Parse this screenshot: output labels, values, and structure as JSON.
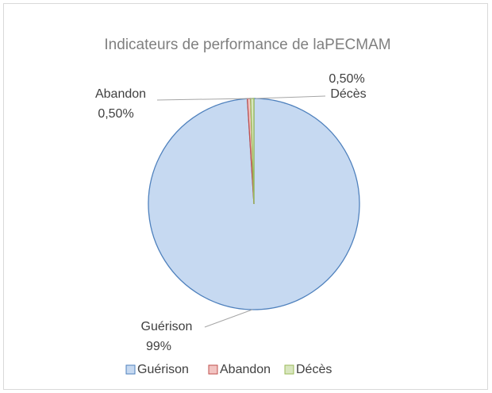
{
  "chart_data": {
    "type": "pie",
    "title": "Indicateurs de performance de laPECMAM",
    "categories": [
      "Guérison",
      "Abandon",
      "Décès"
    ],
    "values": [
      99,
      0.5,
      0.5
    ],
    "value_labels": [
      "99%",
      "0,50%",
      "0,50%"
    ],
    "colors": [
      "#c6d9f1",
      "#f2c4c2",
      "#d8e6bf"
    ],
    "legend": "bottom"
  }
}
